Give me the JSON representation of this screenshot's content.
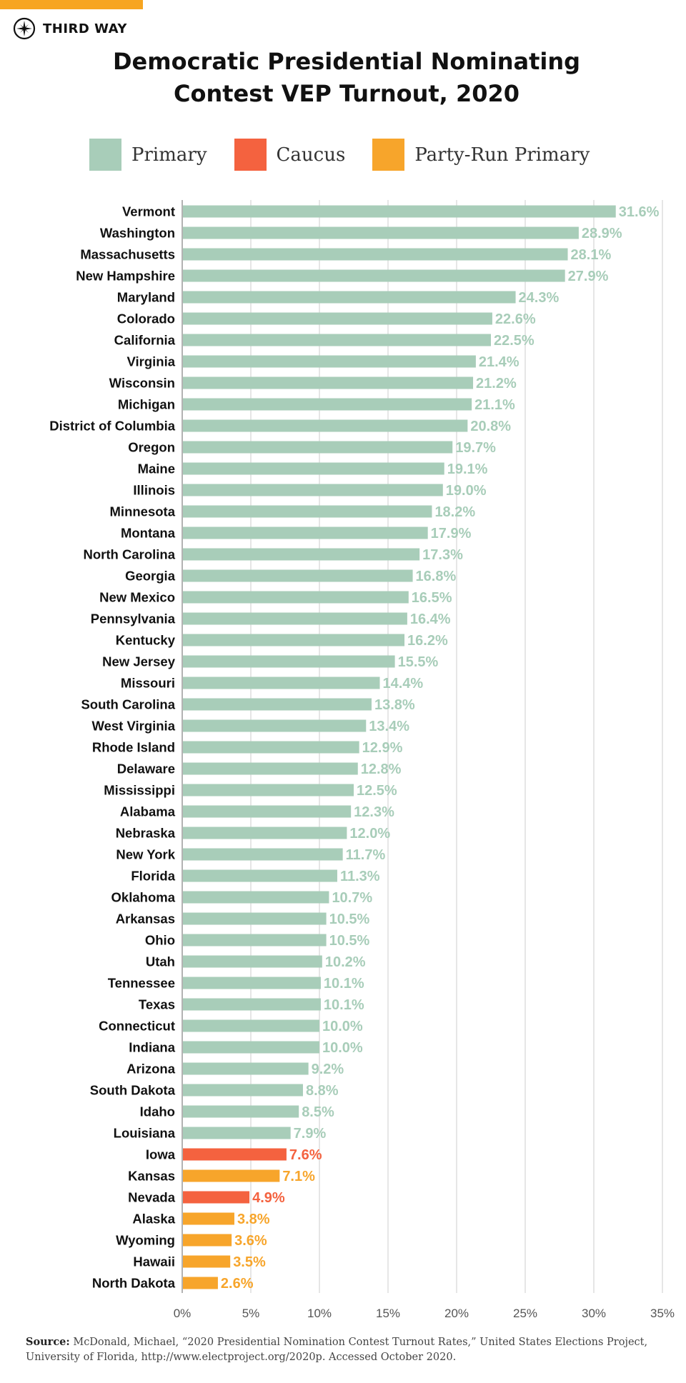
{
  "brand": {
    "name": "THIRD WAY",
    "accent_color": "#f7a520"
  },
  "title_lines": [
    "Democratic Presidential Nominating",
    "Contest VEP Turnout, 2020"
  ],
  "legend": [
    {
      "label": "Primary",
      "color": "#a8cdb9"
    },
    {
      "label": "Caucus",
      "color": "#f4623f"
    },
    {
      "label": "Party-Run Primary",
      "color": "#f7a52b"
    }
  ],
  "chart_data": {
    "type": "bar",
    "orientation": "horizontal",
    "title": "Democratic Presidential Nominating Contest VEP Turnout, 2020",
    "xlabel": "",
    "ylabel": "",
    "xlim": [
      0,
      35
    ],
    "xticks": [
      "0%",
      "5%",
      "10%",
      "15%",
      "20%",
      "25%",
      "30%",
      "35%"
    ],
    "grid": true,
    "categories": [
      "Vermont",
      "Washington",
      "Massachusetts",
      "New Hampshire",
      "Maryland",
      "Colorado",
      "California",
      "Virginia",
      "Wisconsin",
      "Michigan",
      "District of Columbia",
      "Oregon",
      "Maine",
      "Illinois",
      "Minnesota",
      "Montana",
      "North Carolina",
      "Georgia",
      "New Mexico",
      "Pennsylvania",
      "Kentucky",
      "New Jersey",
      "Missouri",
      "South Carolina",
      "West Virginia",
      "Rhode Island",
      "Delaware",
      "Mississippi",
      "Alabama",
      "Nebraska",
      "New York",
      "Florida",
      "Oklahoma",
      "Arkansas",
      "Ohio",
      "Utah",
      "Tennessee",
      "Texas",
      "Connecticut",
      "Indiana",
      "Arizona",
      "South Dakota",
      "Idaho",
      "Louisiana",
      "Iowa",
      "Kansas",
      "Nevada",
      "Alaska",
      "Wyoming",
      "Hawaii",
      "North Dakota"
    ],
    "values": [
      31.6,
      28.9,
      28.1,
      27.9,
      24.3,
      22.6,
      22.5,
      21.4,
      21.2,
      21.1,
      20.8,
      19.7,
      19.1,
      19.0,
      18.2,
      17.9,
      17.3,
      16.8,
      16.5,
      16.4,
      16.2,
      15.5,
      14.4,
      13.8,
      13.4,
      12.9,
      12.8,
      12.5,
      12.3,
      12.0,
      11.7,
      11.3,
      10.7,
      10.5,
      10.5,
      10.2,
      10.1,
      10.1,
      10.0,
      10.0,
      9.2,
      8.8,
      8.5,
      7.9,
      7.6,
      7.1,
      4.9,
      3.8,
      3.6,
      3.5,
      2.6
    ],
    "labels": [
      "31.6%",
      "28.9%",
      "28.1%",
      "27.9%",
      "24.3%",
      "22.6%",
      "22.5%",
      "21.4%",
      "21.2%",
      "21.1%",
      "20.8%",
      "19.7%",
      "19.1%",
      "19.0%",
      "18.2%",
      "17.9%",
      "17.3%",
      "16.8%",
      "16.5%",
      "16.4%",
      "16.2%",
      "15.5%",
      "14.4%",
      "13.8%",
      "13.4%",
      "12.9%",
      "12.8%",
      "12.5%",
      "12.3%",
      "12.0%",
      "11.7%",
      "11.3%",
      "10.7%",
      "10.5%",
      "10.5%",
      "10.2%",
      "10.1%",
      "10.1%",
      "10.0%",
      "10.0%",
      "9.2%",
      "8.8%",
      "8.5%",
      "7.9%",
      "7.6%",
      "7.1%",
      "4.9%",
      "3.8%",
      "3.6%",
      "3.5%",
      "2.6%"
    ],
    "contest_type": [
      "P",
      "P",
      "P",
      "P",
      "P",
      "P",
      "P",
      "P",
      "P",
      "P",
      "P",
      "P",
      "P",
      "P",
      "P",
      "P",
      "P",
      "P",
      "P",
      "P",
      "P",
      "P",
      "P",
      "P",
      "P",
      "P",
      "P",
      "P",
      "P",
      "P",
      "P",
      "P",
      "P",
      "P",
      "P",
      "P",
      "P",
      "P",
      "P",
      "P",
      "P",
      "P",
      "P",
      "P",
      "C",
      "R",
      "C",
      "R",
      "R",
      "R",
      "R"
    ],
    "type_colors": {
      "P": "#a8cdb9",
      "C": "#f4623f",
      "R": "#f7a52b"
    }
  },
  "source": {
    "label": "Source:",
    "text": "McDonald, Michael, “2020 Presidential Nomination Contest Turnout Rates,” United States Elections Project, University of Florida, http://www.electproject.org/2020p. Accessed October 2020."
  }
}
